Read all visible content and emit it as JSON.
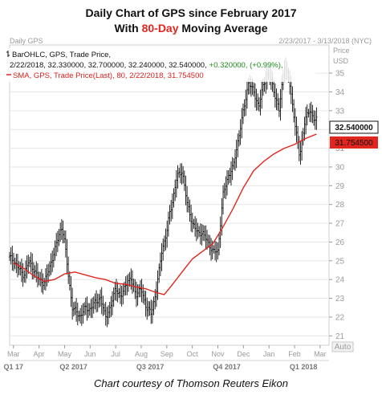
{
  "header": {
    "title_line1": "Daily Chart of GPS since February 2017",
    "title_line2_pre": "With ",
    "title_line2_highlight": "80-Day",
    "title_line2_post": " Moving Average"
  },
  "credit": "Chart courtesy of Thomson Reuters Eikon",
  "chart_data": {
    "type": "line",
    "symbol_label": "Daily GPS",
    "date_range": "2/23/2017 - 3/13/2018 (NYC)",
    "currency_label": "Price\nUSD",
    "legend": {
      "bar_line_prefix": "BarOHLC, GPS, Trade Price,",
      "bar_line_values": "2/22/2018, 32.330000, 32.700000, 32.240000, 32.540000,",
      "bar_line_change": "+0.320000, (+0.99%),",
      "sma_line": "SMA, GPS, Trade Price(Last), 80, 2/22/2018, 31.754500"
    },
    "ylim": [
      20.5,
      36.5
    ],
    "yticks": [
      "21",
      "22",
      "23",
      "24",
      "25",
      "26",
      "27",
      "28",
      "29",
      "30",
      "31",
      "32",
      "33",
      "34",
      "35"
    ],
    "y_axis_note": "Auto",
    "last_price_label": "32.540000",
    "sma_value_label": "31.754500",
    "colors": {
      "price": "#111111",
      "sma": "#e0261f"
    },
    "x_ticks": [
      {
        "label": "Mar",
        "x": 0.0
      },
      {
        "label": "Apr",
        "x": 1.0
      },
      {
        "label": "May",
        "x": 2.0
      },
      {
        "label": "Jun",
        "x": 3.0
      },
      {
        "label": "Jul",
        "x": 4.0
      },
      {
        "label": "Aug",
        "x": 5.0
      },
      {
        "label": "Sep",
        "x": 6.0
      },
      {
        "label": "Oct",
        "x": 7.0
      },
      {
        "label": "Nov",
        "x": 8.0
      },
      {
        "label": "Dec",
        "x": 9.0
      },
      {
        "label": "Jan",
        "x": 10.0
      },
      {
        "label": "Feb",
        "x": 11.0
      },
      {
        "label": "Mar",
        "x": 12.0
      }
    ],
    "quarters": [
      {
        "label": "Q1 17",
        "x": 0.0
      },
      {
        "label": "Q2 2017",
        "x": 2.35
      },
      {
        "label": "Q3 2017",
        "x": 5.35
      },
      {
        "label": "Q4 2017",
        "x": 8.35
      },
      {
        "label": "Q1 2018",
        "x": 11.35
      }
    ],
    "series": [
      {
        "name": "GPS",
        "x": [
          -0.15,
          0.0,
          0.2,
          0.4,
          0.6,
          0.8,
          1.0,
          1.2,
          1.4,
          1.6,
          1.8,
          1.9,
          2.0,
          2.1,
          2.3,
          2.5,
          2.6,
          2.8,
          3.0,
          3.2,
          3.4,
          3.6,
          3.8,
          4.0,
          4.2,
          4.4,
          4.6,
          4.8,
          5.0,
          5.2,
          5.4,
          5.6,
          5.8,
          6.0,
          6.1,
          6.2,
          6.4,
          6.6,
          6.8,
          7.0,
          7.2,
          7.4,
          7.6,
          7.8,
          8.0,
          8.2,
          8.4,
          8.6,
          8.8,
          9.0,
          9.2,
          9.4,
          9.6,
          9.8,
          10.0,
          10.2,
          10.4,
          10.6,
          10.8,
          11.0,
          11.2,
          11.4,
          11.6,
          11.8,
          11.86
        ],
        "values": [
          25.2,
          25.0,
          24.6,
          24.2,
          25.0,
          24.5,
          24.0,
          23.8,
          24.6,
          25.5,
          26.5,
          26.8,
          26.0,
          24.8,
          22.5,
          22.2,
          22.0,
          22.5,
          22.4,
          22.8,
          23.0,
          22.0,
          22.5,
          23.6,
          23.0,
          23.8,
          24.0,
          23.2,
          23.5,
          22.5,
          22.2,
          23.5,
          25.5,
          26.5,
          27.5,
          28.0,
          29.5,
          29.8,
          28.0,
          27.0,
          26.5,
          26.5,
          26.0,
          25.5,
          25.5,
          28.5,
          29.5,
          30.0,
          31.5,
          33.0,
          34.5,
          34.0,
          33.2,
          34.5,
          35.0,
          34.0,
          33.0,
          35.5,
          34.5,
          32.5,
          30.5,
          32.5,
          33.0,
          32.5,
          32.5
        ]
      },
      {
        "name": "SMA 80",
        "x": [
          0.0,
          0.4,
          0.8,
          1.2,
          1.6,
          2.0,
          2.4,
          2.8,
          3.2,
          3.6,
          4.0,
          4.4,
          4.8,
          5.2,
          5.6,
          5.9,
          6.2,
          6.6,
          7.0,
          7.4,
          7.8,
          8.2,
          8.6,
          9.0,
          9.4,
          9.8,
          10.2,
          10.6,
          11.0,
          11.4,
          11.86
        ],
        "values": [
          24.9,
          24.6,
          24.2,
          23.9,
          24.0,
          24.3,
          24.4,
          24.25,
          24.1,
          24.0,
          23.8,
          23.75,
          23.6,
          23.5,
          23.3,
          23.2,
          23.7,
          24.4,
          25.1,
          25.5,
          25.9,
          26.8,
          27.8,
          28.9,
          29.8,
          30.3,
          30.7,
          31.0,
          31.2,
          31.5,
          31.75
        ]
      }
    ]
  }
}
